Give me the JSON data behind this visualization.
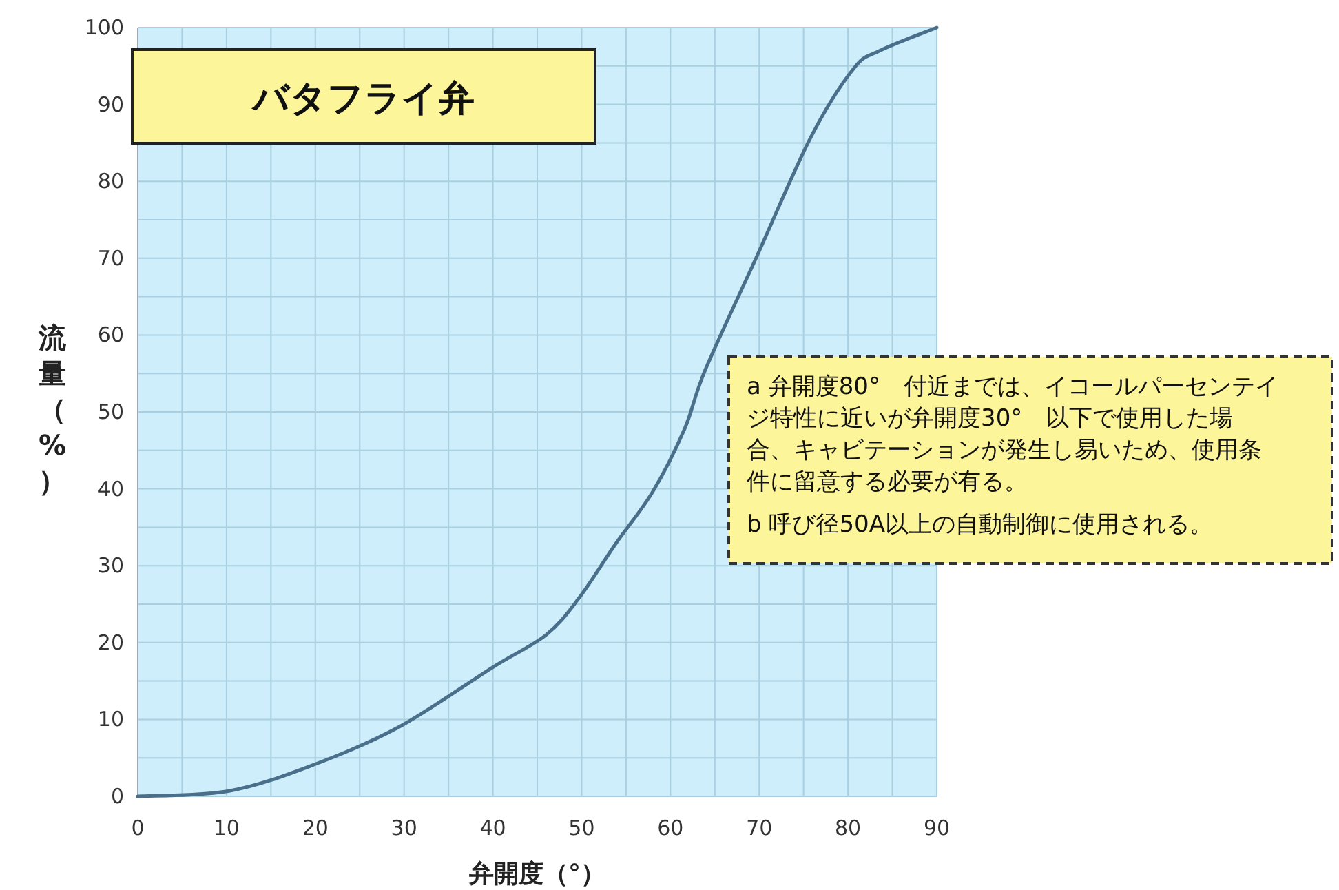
{
  "chart_data": {
    "type": "line",
    "title": "バタフライ弁",
    "xlabel": "弁開度（°）",
    "ylabel": "流量（%）",
    "x": [
      0,
      10.3,
      19.8,
      29.4,
      40,
      46,
      49.7,
      53.8,
      58,
      61.6,
      63.9,
      69.8,
      75.8,
      80.6,
      83.6,
      90
    ],
    "series": [
      {
        "color": "#4a6f8a",
        "values": [
          0,
          0.7,
          4.1,
          9,
          16.8,
          21,
          25.8,
          32.8,
          39.6,
          47.8,
          55.4,
          70.4,
          85.7,
          94.6,
          97,
          100
        ]
      }
    ],
    "xlim": [
      0,
      90
    ],
    "ylim": [
      0,
      100
    ],
    "xticks": [
      0,
      {
        "value": 5,
        "label": null
      },
      10,
      {
        "value": 15,
        "label": null
      },
      20,
      {
        "value": 25,
        "label": null
      },
      30,
      {
        "value": 35,
        "label": null
      },
      40,
      {
        "value": 45,
        "label": null
      },
      50,
      {
        "value": 55,
        "label": null
      },
      60,
      {
        "value": 65,
        "label": null
      },
      70,
      {
        "value": 75,
        "label": null
      },
      80,
      {
        "value": 85,
        "label": null
      },
      90
    ],
    "yticks": [
      0,
      {
        "value": 5,
        "label": null
      },
      10,
      {
        "value": 15,
        "label": null
      },
      20,
      {
        "value": 25,
        "label": null
      },
      30,
      {
        "value": 35,
        "label": null
      },
      40,
      {
        "value": 45,
        "label": null
      },
      50,
      {
        "value": 55,
        "label": null
      },
      60,
      {
        "value": 65,
        "label": null
      },
      70,
      {
        "value": 75,
        "label": null
      },
      80,
      {
        "value": 85,
        "label": null
      },
      90,
      {
        "value": 95,
        "label": null
      },
      100
    ],
    "grid": true,
    "annotations": [
      "a 弁開度80°　付近までは、イコールパーセンテイジ特性に近いが弁開度30°　以下で使用した場合、キャビテーションが発生し易いため、使用条件に留意する必要が有る。",
      "b 呼び径50A以上の自動制御に使用される。"
    ]
  }
}
